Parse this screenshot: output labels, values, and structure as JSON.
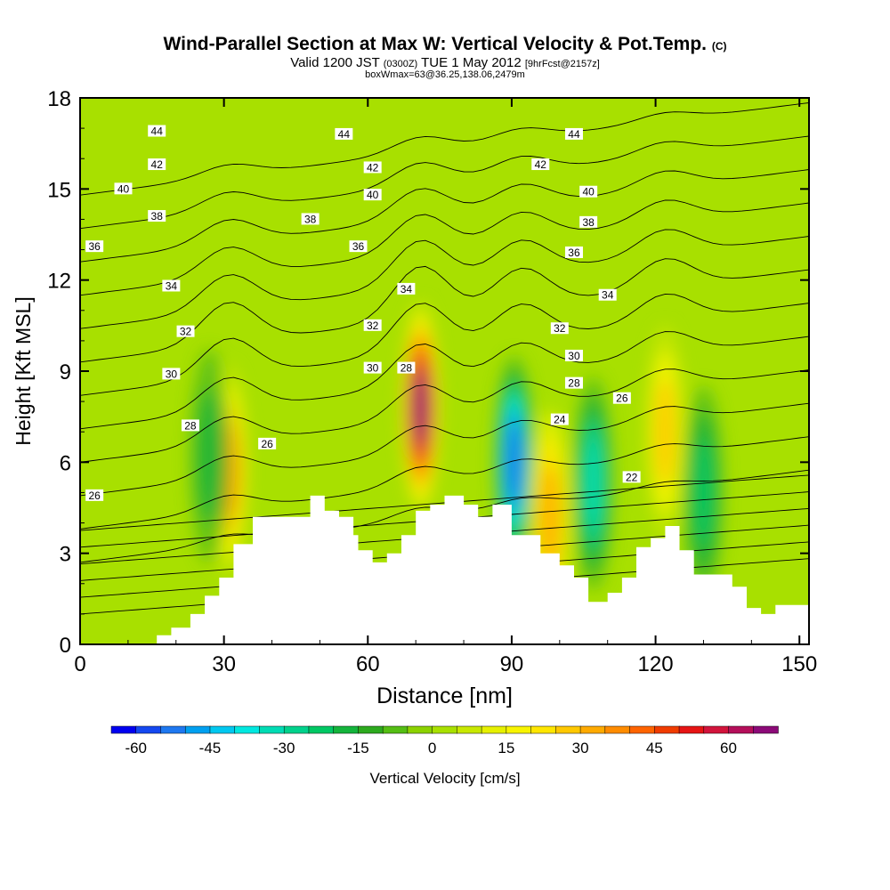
{
  "header": {
    "title": "Wind-Parallel Section at Max W: Vertical Velocity & Pot.Temp.",
    "title_mark": "(C)",
    "valid_prefix": "Valid 1200 JST",
    "valid_utc": "(0300Z)",
    "valid_date": "TUE 1 May 2012",
    "forecast": "[9hrFcst@2157z]",
    "box_info": "boxWmax=63@36.25,138.06,2479m"
  },
  "colors": {
    "background_field": "#9bdc00",
    "terrain": "#ffffff",
    "contour": "#000000",
    "frame": "#000000"
  },
  "chart_data": {
    "type": "heatmap",
    "xlabel": "Distance [nm]",
    "ylabel": "Height [Kft MSL]",
    "xlim": [
      0,
      152
    ],
    "ylim": [
      0,
      18
    ],
    "x_ticks": [
      "0",
      "30",
      "60",
      "90",
      "120",
      "150"
    ],
    "y_ticks": [
      "0",
      "3",
      "6",
      "9",
      "12",
      "15",
      "18"
    ],
    "colorbar": {
      "label": "Vertical Velocity [cm/s]",
      "tick_labels": [
        "-60",
        "-45",
        "-30",
        "-15",
        "0",
        "15",
        "30",
        "45",
        "60"
      ],
      "tick_values": [
        -60,
        -45,
        -30,
        -15,
        0,
        15,
        30,
        45,
        60
      ],
      "levels": [
        -65,
        -60,
        -55,
        -50,
        -45,
        -40,
        -35,
        -30,
        -25,
        -20,
        -15,
        -10,
        -5,
        0,
        5,
        10,
        15,
        20,
        25,
        30,
        35,
        40,
        45,
        50,
        55,
        60,
        65,
        70
      ],
      "colors": [
        "#0000f0",
        "#1448f0",
        "#1e78f0",
        "#00a0f0",
        "#00c8f0",
        "#00e8e0",
        "#00dcb4",
        "#00d28c",
        "#00c864",
        "#14b43c",
        "#2daa1e",
        "#55be14",
        "#8cd200",
        "#a8e000",
        "#c8e800",
        "#e6f000",
        "#f8f400",
        "#ffe600",
        "#ffc800",
        "#ffaa00",
        "#ff8c00",
        "#ff6400",
        "#f03c00",
        "#e61414",
        "#d2143c",
        "#b40f5a",
        "#8c0a78"
      ]
    },
    "vertical_velocity_features": [
      {
        "x": 31,
        "y": 5.7,
        "value": 35
      },
      {
        "x": 71,
        "y": 7.8,
        "value": 65
      },
      {
        "x": 90.5,
        "y": 6.0,
        "value": -55
      },
      {
        "x": 98,
        "y": 4.2,
        "value": 30
      },
      {
        "x": 107,
        "y": 5.3,
        "value": -35
      },
      {
        "x": 122,
        "y": 7.0,
        "value": 25
      },
      {
        "x": 130,
        "y": 5.0,
        "value": -25
      },
      {
        "x": 27,
        "y": 6.2,
        "value": -20
      }
    ],
    "terrain_profile": {
      "x": [
        0,
        16,
        16,
        19,
        19,
        23,
        23,
        26,
        26,
        29,
        29,
        32,
        32,
        36,
        36,
        48,
        48,
        51,
        51,
        54,
        54,
        57,
        57,
        58,
        58,
        61,
        61,
        64,
        64,
        67,
        67,
        70,
        70,
        73,
        73,
        76,
        76,
        80,
        80,
        83,
        83,
        86,
        86,
        90,
        90,
        96,
        96,
        100,
        100,
        103,
        103,
        106,
        106,
        110,
        110,
        113,
        113,
        116,
        116,
        119,
        119,
        122,
        122,
        125,
        125,
        128,
        128,
        136,
        136,
        139,
        139,
        142,
        142,
        145,
        145,
        152
      ],
      "y": [
        0,
        0,
        0.3,
        0.3,
        0.55,
        0.55,
        1.0,
        1.0,
        1.6,
        1.6,
        2.2,
        2.2,
        3.3,
        3.3,
        4.2,
        4.2,
        4.9,
        4.9,
        4.4,
        4.4,
        4.2,
        4.2,
        3.6,
        3.6,
        3.1,
        3.1,
        2.7,
        2.7,
        3.0,
        3.0,
        3.6,
        3.6,
        4.4,
        4.4,
        4.6,
        4.6,
        4.9,
        4.9,
        4.6,
        4.6,
        4.2,
        4.2,
        4.6,
        4.6,
        3.6,
        3.6,
        3.0,
        3.0,
        2.6,
        2.6,
        2.2,
        2.2,
        1.4,
        1.4,
        1.7,
        1.7,
        2.2,
        2.2,
        3.2,
        3.2,
        3.5,
        3.5,
        3.9,
        3.9,
        3.1,
        3.1,
        2.3,
        2.3,
        1.9,
        1.9,
        1.2,
        1.2,
        1.0,
        1.0,
        1.3,
        1.3
      ]
    },
    "potential_temperature_contours": {
      "label_units": "none",
      "levels": [
        22,
        24,
        26,
        28,
        30,
        32,
        34,
        36,
        38,
        40,
        42,
        44
      ],
      "labels": [
        {
          "text": "44",
          "x": 16,
          "y": 16.9
        },
        {
          "text": "44",
          "x": 55,
          "y": 16.8
        },
        {
          "text": "44",
          "x": 103,
          "y": 16.8
        },
        {
          "text": "42",
          "x": 16,
          "y": 15.8
        },
        {
          "text": "42",
          "x": 61,
          "y": 15.7
        },
        {
          "text": "42",
          "x": 96,
          "y": 15.8
        },
        {
          "text": "40",
          "x": 9,
          "y": 15.0
        },
        {
          "text": "40",
          "x": 61,
          "y": 14.8
        },
        {
          "text": "40",
          "x": 106,
          "y": 14.9
        },
        {
          "text": "38",
          "x": 16,
          "y": 14.1
        },
        {
          "text": "38",
          "x": 48,
          "y": 14.0
        },
        {
          "text": "38",
          "x": 106,
          "y": 13.9
        },
        {
          "text": "36",
          "x": 3,
          "y": 13.1
        },
        {
          "text": "36",
          "x": 58,
          "y": 13.1
        },
        {
          "text": "36",
          "x": 103,
          "y": 12.9
        },
        {
          "text": "34",
          "x": 19,
          "y": 11.8
        },
        {
          "text": "34",
          "x": 68,
          "y": 11.7
        },
        {
          "text": "34",
          "x": 110,
          "y": 11.5
        },
        {
          "text": "32",
          "x": 22,
          "y": 10.3
        },
        {
          "text": "32",
          "x": 61,
          "y": 10.5
        },
        {
          "text": "32",
          "x": 100,
          "y": 10.4
        },
        {
          "text": "30",
          "x": 19,
          "y": 8.9
        },
        {
          "text": "30",
          "x": 61,
          "y": 9.1
        },
        {
          "text": "30",
          "x": 103,
          "y": 9.5
        },
        {
          "text": "28",
          "x": 23,
          "y": 7.2
        },
        {
          "text": "28",
          "x": 68,
          "y": 9.1
        },
        {
          "text": "28",
          "x": 103,
          "y": 8.6
        },
        {
          "text": "26",
          "x": 3,
          "y": 4.9
        },
        {
          "text": "26",
          "x": 39,
          "y": 6.6
        },
        {
          "text": "26",
          "x": 113,
          "y": 8.1
        },
        {
          "text": "24",
          "x": 100,
          "y": 7.4
        },
        {
          "text": "22",
          "x": 115,
          "y": 5.5
        }
      ]
    }
  }
}
